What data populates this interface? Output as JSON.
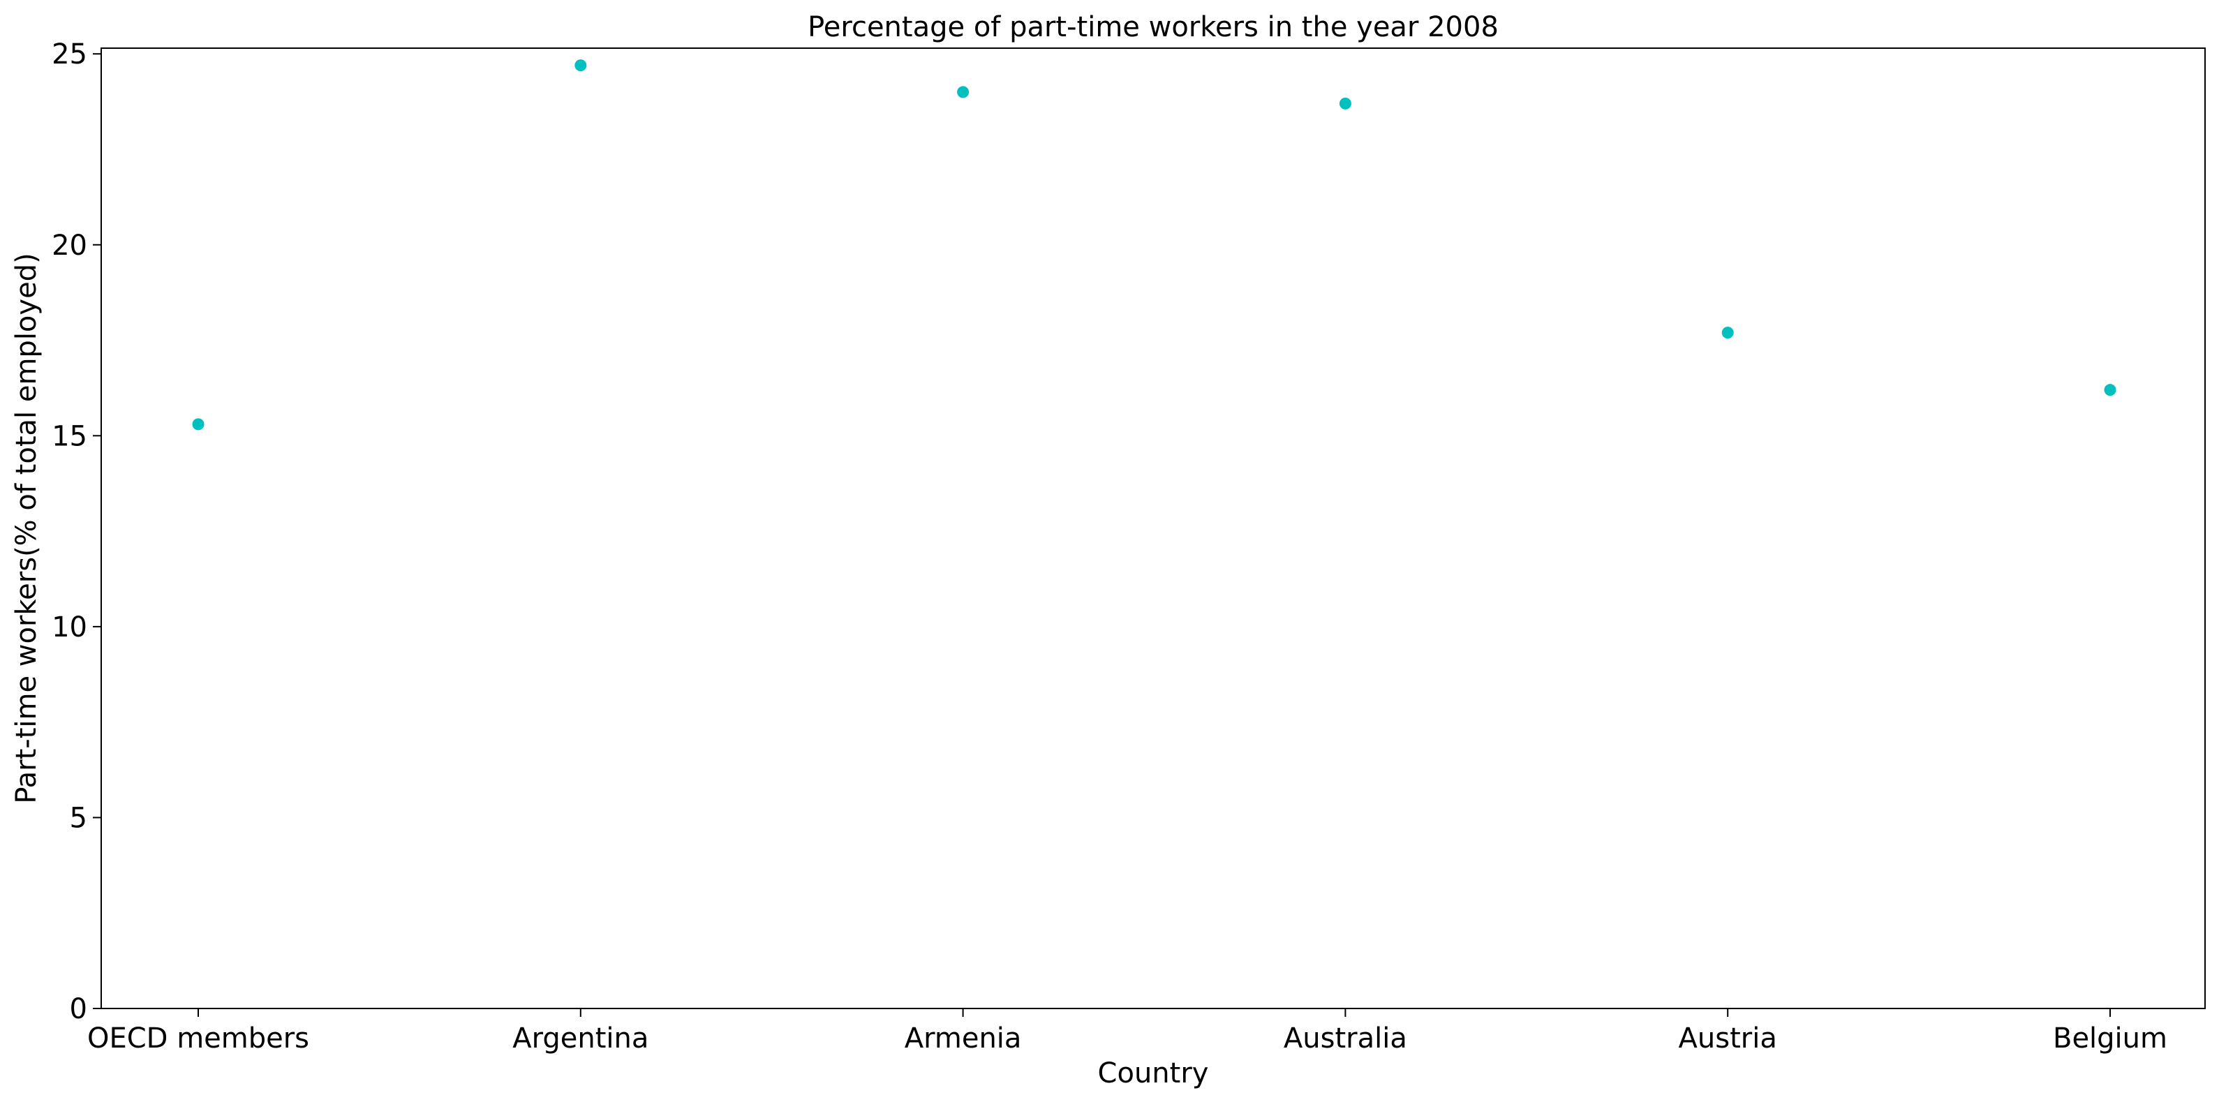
{
  "chart_data": {
    "type": "scatter",
    "title": "Percentage of part-time workers in the year 2008",
    "xlabel": "Country",
    "ylabel": "Part-time workers(% of total employed)",
    "categories": [
      "OECD members",
      "Argentina",
      "Armenia",
      "Australia",
      "Austria",
      "Belgium"
    ],
    "series": [
      {
        "values": [
          15.3,
          24.7,
          24.0,
          23.7,
          17.7,
          16.2
        ],
        "color": "#00bfbf"
      }
    ],
    "ylim": [
      0,
      25.15
    ],
    "yticks": [
      0,
      5,
      10,
      15,
      20,
      25
    ],
    "grid": false,
    "legend": "none"
  }
}
